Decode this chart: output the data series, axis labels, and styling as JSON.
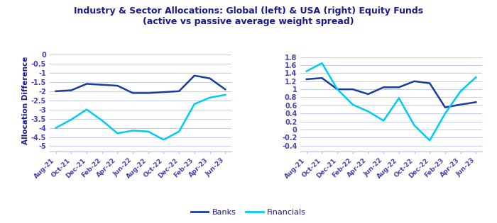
{
  "title": "Industry & Sector Allocations: Global (left) & USA (right) Equity Funds\n(active vs passive average weight spread)",
  "ylabel": "Allocation Difference",
  "x_labels": [
    "Aug-21",
    "Oct-21",
    "Dec-21",
    "Feb-22",
    "Apr-22",
    "Jun-22",
    "Aug-22",
    "Oct-22",
    "Dec-22",
    "Feb-23",
    "Apr-23",
    "Jun-23"
  ],
  "left": {
    "banks": [
      -2.0,
      -1.95,
      -1.6,
      -1.65,
      -1.7,
      -2.1,
      -2.1,
      -2.05,
      -2.0,
      -1.15,
      -1.3,
      -1.9
    ],
    "financials": [
      -4.0,
      -3.55,
      -3.0,
      -3.6,
      -4.3,
      -4.15,
      -4.2,
      -4.65,
      -4.2,
      -2.7,
      -2.35,
      -2.2
    ],
    "ylim": [
      -5.3,
      0.3
    ],
    "yticks": [
      0,
      -0.5,
      -1,
      -1.5,
      -2,
      -2.5,
      -3,
      -3.5,
      -4,
      -4.5,
      -5
    ]
  },
  "right": {
    "banks": [
      1.25,
      1.28,
      1.0,
      1.0,
      0.88,
      1.05,
      1.05,
      1.2,
      1.15,
      0.55,
      0.62,
      0.68
    ],
    "financials": [
      1.45,
      1.65,
      1.0,
      0.62,
      0.45,
      0.22,
      0.78,
      0.1,
      -0.27,
      0.4,
      0.95,
      1.3
    ],
    "ylim": [
      -0.55,
      2.0
    ],
    "yticks": [
      -0.4,
      -0.2,
      0,
      0.2,
      0.4,
      0.6,
      0.8,
      1.0,
      1.2,
      1.4,
      1.6,
      1.8
    ]
  },
  "banks_color": "#1a3a9c",
  "financials_color": "#00ccee",
  "background_color": "#ffffff",
  "grid_color": "#c5cce8",
  "text_color": "#1a1a8c",
  "title_color": "#1a1a8c",
  "tick_label_color": "#4444aa",
  "legend_fontsize": 8,
  "ylabel_fontsize": 7.5,
  "tick_fontsize": 6.5,
  "title_fontsize": 9.0,
  "line_width": 1.8
}
